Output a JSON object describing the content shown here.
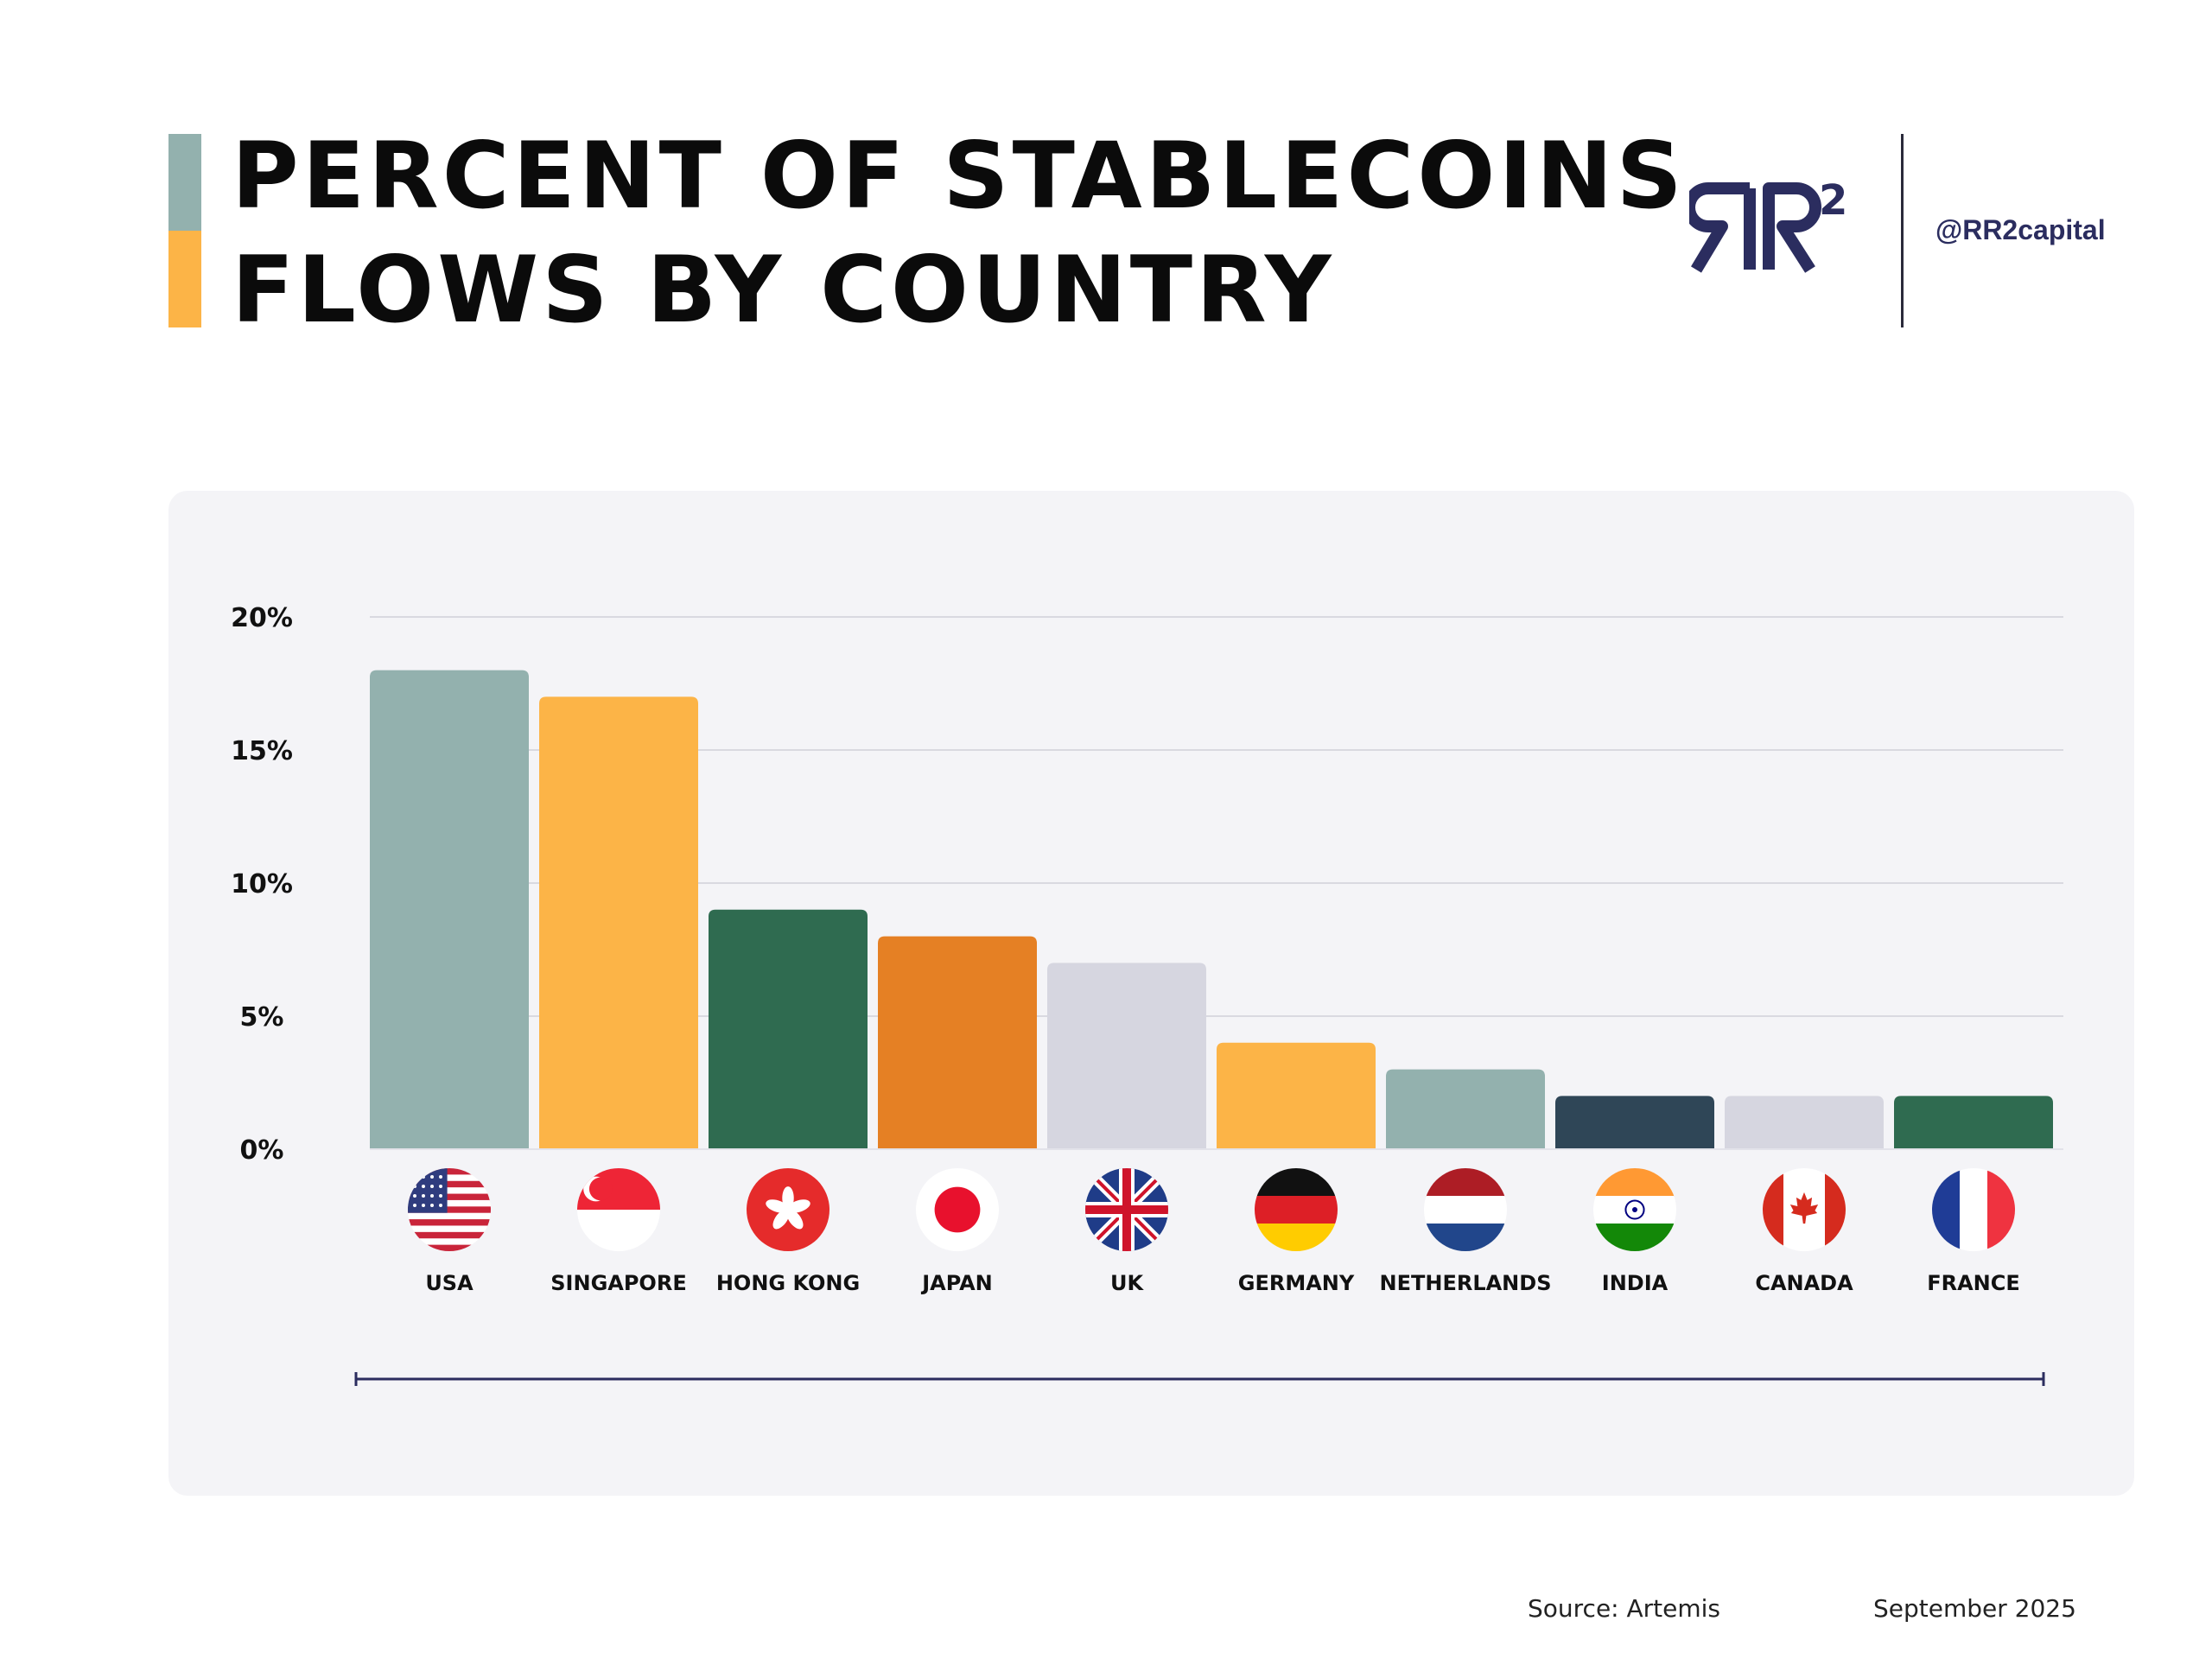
{
  "header": {
    "title_line1": "PERCENT OF STABLECOINS",
    "title_line2": "FLOWS BY COUNTRY",
    "brand_logo_text": "RR2",
    "handle": "@RR2capital"
  },
  "footer": {
    "source": "Source: Artemis",
    "date": "September 2025"
  },
  "colors": {
    "sage": "#93b1ae",
    "amber": "#fcb447",
    "green": "#2f6b50",
    "orange": "#e58024",
    "lilac": "#d6d6e0",
    "navy": "#2f4657",
    "brand": "#2b2d5f"
  },
  "chart_data": {
    "type": "bar",
    "categories": [
      "USA",
      "SINGAPORE",
      "HONG KONG",
      "JAPAN",
      "UK",
      "GERMANY",
      "NETHERLANDS",
      "INDIA",
      "CANADA",
      "FRANCE"
    ],
    "values": [
      18,
      17,
      9,
      8,
      7,
      4,
      3,
      2,
      2,
      2
    ],
    "bar_colors": [
      "#93b1ae",
      "#fcb447",
      "#2f6b50",
      "#e58024",
      "#d6d6e0",
      "#fcb447",
      "#93b1ae",
      "#2f4657",
      "#d6d6e0",
      "#2f6b50"
    ],
    "flag_icons": [
      "usa-flag-icon",
      "singapore-flag-icon",
      "hong-kong-flag-icon",
      "japan-flag-icon",
      "uk-flag-icon",
      "germany-flag-icon",
      "netherlands-flag-icon",
      "india-flag-icon",
      "canada-flag-icon",
      "france-flag-icon"
    ],
    "y_ticks": [
      0,
      5,
      10,
      15,
      20
    ],
    "y_tick_labels": [
      "0%",
      "5%",
      "10%",
      "15%",
      "20%"
    ],
    "ylim": [
      0,
      20
    ],
    "grid": true
  }
}
